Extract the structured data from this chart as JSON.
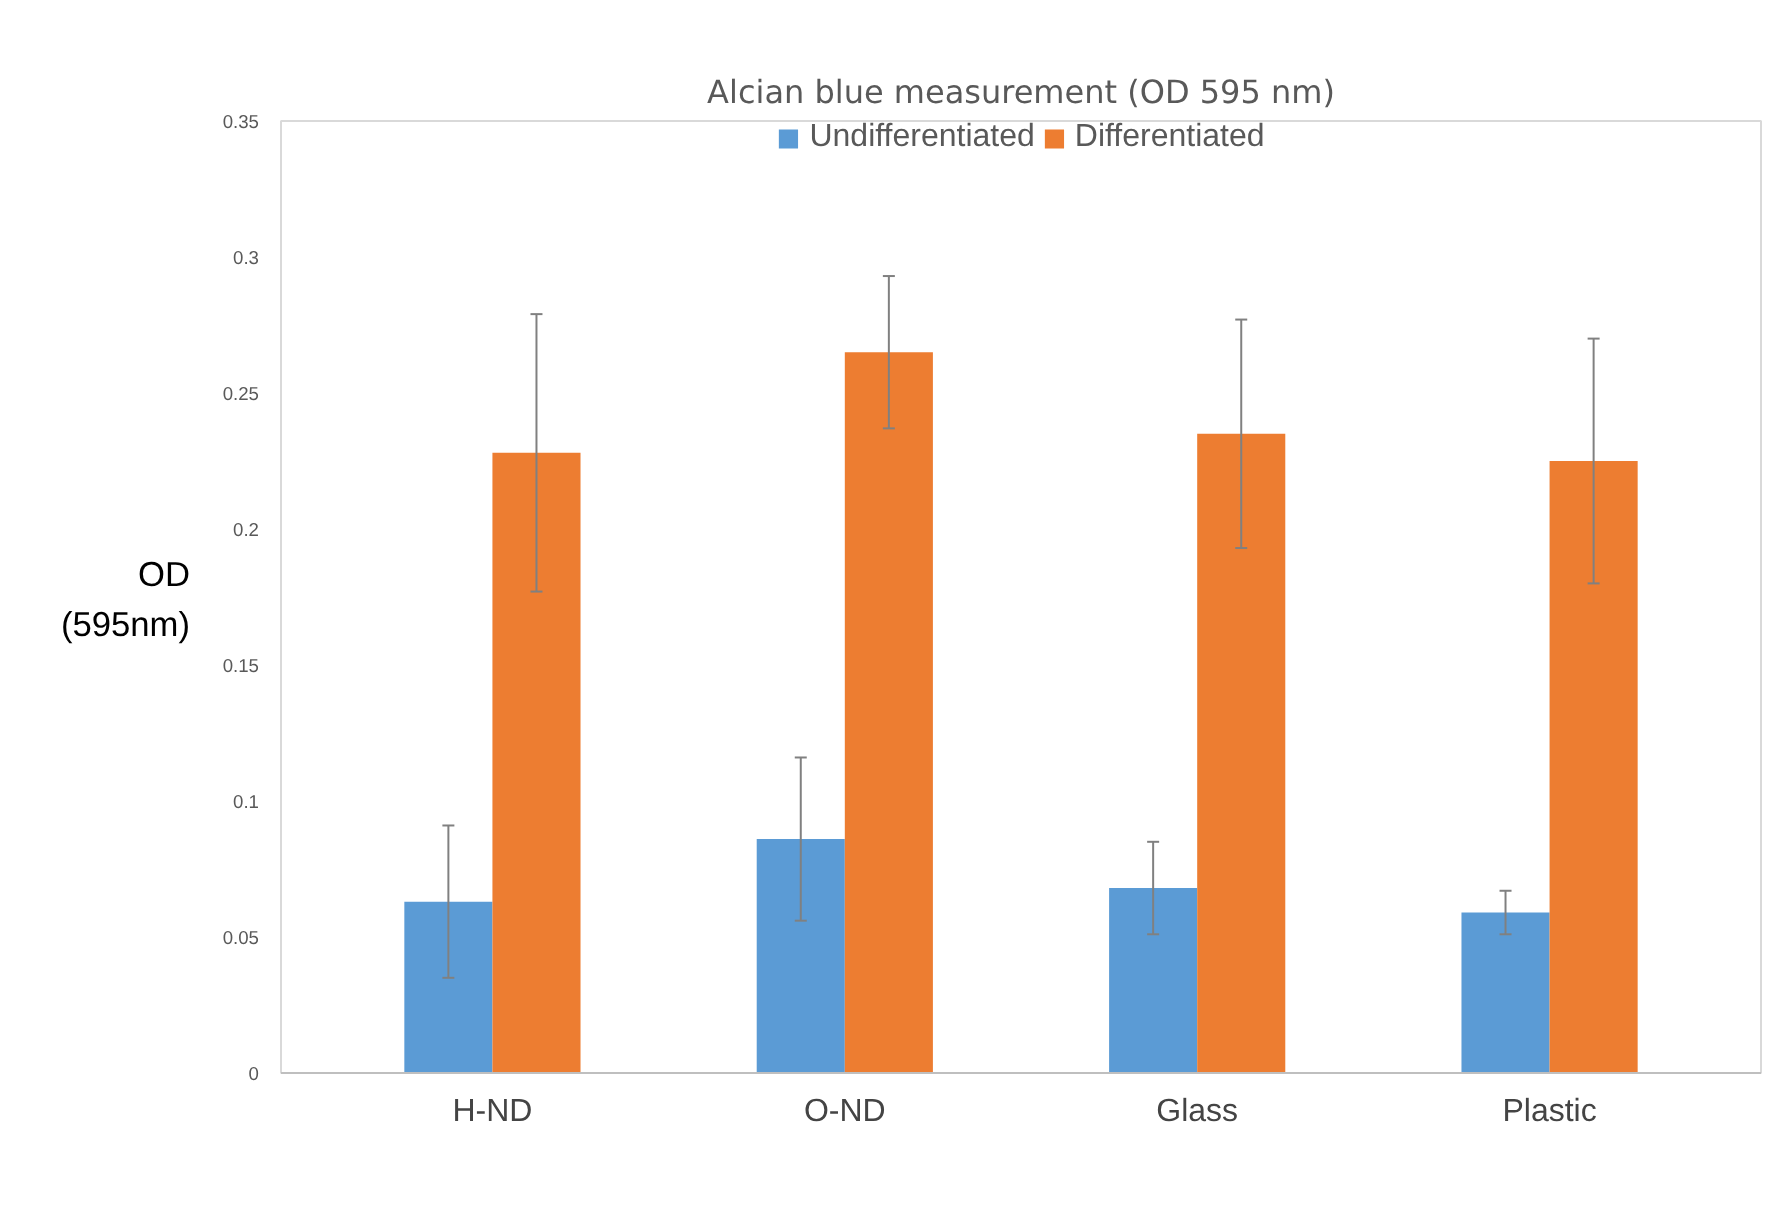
{
  "chart_data": {
    "type": "bar",
    "title": "Alcian blue measurement (OD 595 nm)",
    "ylabel": "OD\n(595nm)",
    "categories": [
      "H-ND",
      "O-ND",
      "Glass",
      "Plastic"
    ],
    "series": [
      {
        "name": "Undifferentiated",
        "color": "#5b9bd5",
        "values": [
          0.063,
          0.086,
          0.068,
          0.059
        ],
        "errors": [
          0.028,
          0.03,
          0.017,
          0.008
        ]
      },
      {
        "name": "Differentiated",
        "color": "#ed7d31",
        "values": [
          0.228,
          0.265,
          0.235,
          0.225
        ],
        "errors": [
          0.051,
          0.028,
          0.042,
          0.045
        ]
      }
    ],
    "ylim": [
      0,
      0.35
    ],
    "yticks": [
      0,
      0.05,
      0.1,
      0.15,
      0.2,
      0.25,
      0.3,
      0.35
    ],
    "grid": false,
    "legend": "top"
  }
}
